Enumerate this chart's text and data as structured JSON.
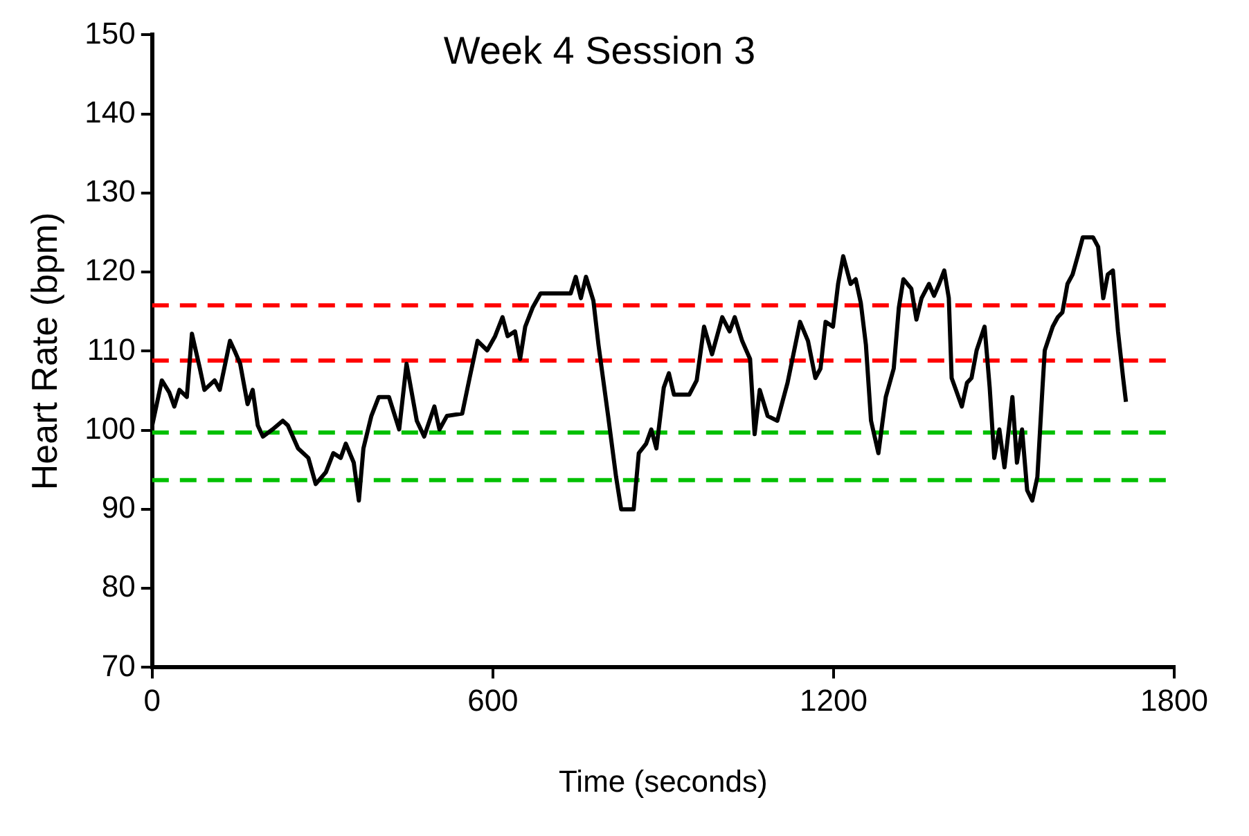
{
  "chart_data": {
    "type": "line",
    "title": "Week 4 Session 3",
    "xlabel": "Time (seconds)",
    "ylabel": "Heart Rate (bpm)",
    "xlim": [
      0,
      1800
    ],
    "xticks": [
      0,
      600,
      1200,
      1800
    ],
    "ylim": [
      70,
      150
    ],
    "yticks": [
      70,
      80,
      90,
      100,
      110,
      120,
      130,
      140,
      150
    ],
    "grid": false,
    "legend": false,
    "marker": "none",
    "line_style": "solid",
    "series": [
      {
        "color": "#000000",
        "x": [
          0,
          17,
          30,
          39,
          48,
          61,
          70,
          84,
          92,
          110,
          119,
          137,
          146,
          155,
          168,
          177,
          186,
          195,
          212,
          230,
          239,
          257,
          275,
          288,
          306,
          319,
          332,
          341,
          355,
          364,
          372,
          386,
          399,
          417,
          435,
          448,
          466,
          479,
          497,
          506,
          519,
          546,
          559,
          573,
          590,
          604,
          617,
          626,
          639,
          648,
          657,
          670,
          684,
          737,
          746,
          755,
          764,
          777,
          786,
          803,
          817,
          826,
          848,
          857,
          870,
          879,
          888,
          901,
          910,
          919,
          946,
          959,
          972,
          986,
          1004,
          1017,
          1026,
          1039,
          1053,
          1061,
          1070,
          1084,
          1101,
          1119,
          1141,
          1155,
          1168,
          1177,
          1186,
          1199,
          1208,
          1217,
          1230,
          1239,
          1248,
          1257,
          1266,
          1279,
          1292,
          1306,
          1315,
          1323,
          1337,
          1346,
          1355,
          1368,
          1377,
          1386,
          1395,
          1403,
          1408,
          1417,
          1426,
          1435,
          1443,
          1452,
          1466,
          1475,
          1483,
          1492,
          1501,
          1515,
          1523,
          1532,
          1541,
          1550,
          1559,
          1568,
          1572,
          1586,
          1595,
          1603,
          1612,
          1621,
          1630,
          1639,
          1657,
          1666,
          1675,
          1683,
          1692,
          1701,
          1710,
          1715
        ],
        "values": [
          100.6,
          106.3,
          104.8,
          103.0,
          105.1,
          104.2,
          112.2,
          107.8,
          105.1,
          106.3,
          105.1,
          111.3,
          109.9,
          108.4,
          103.3,
          105.1,
          100.6,
          99.2,
          100.1,
          101.2,
          100.6,
          97.7,
          96.5,
          93.2,
          94.7,
          97.1,
          96.5,
          98.3,
          95.9,
          91.1,
          97.7,
          101.8,
          104.2,
          104.2,
          100.1,
          108.4,
          101.2,
          99.2,
          103.0,
          100.1,
          101.8,
          102.1,
          106.6,
          111.3,
          110.1,
          111.9,
          114.3,
          111.9,
          112.5,
          109.0,
          113.1,
          115.5,
          117.3,
          117.3,
          119.4,
          116.7,
          119.4,
          116.4,
          110.8,
          101.8,
          94.1,
          90.0,
          90.0,
          97.1,
          98.3,
          100.1,
          97.7,
          105.4,
          107.2,
          104.5,
          104.5,
          106.3,
          113.1,
          109.6,
          114.3,
          112.5,
          114.3,
          111.3,
          109.0,
          99.5,
          105.1,
          101.8,
          101.2,
          106.0,
          113.7,
          111.3,
          106.6,
          107.8,
          113.7,
          113.1,
          118.5,
          122.0,
          118.5,
          119.1,
          116.1,
          110.8,
          101.2,
          97.1,
          104.2,
          107.8,
          115.5,
          119.1,
          117.9,
          114.0,
          116.7,
          118.5,
          117.0,
          118.5,
          120.2,
          116.7,
          106.6,
          104.8,
          103.0,
          106.0,
          106.6,
          110.1,
          113.1,
          105.4,
          96.5,
          100.1,
          95.3,
          104.2,
          95.9,
          100.1,
          92.4,
          91.1,
          94.1,
          105.4,
          110.1,
          113.1,
          114.3,
          114.9,
          118.5,
          119.7,
          122.0,
          124.4,
          124.4,
          123.2,
          116.7,
          119.7,
          120.2,
          112.5,
          106.6,
          103.6
        ]
      }
    ],
    "ref_lines": [
      {
        "axis": "y",
        "value": 115.8,
        "color": "#ff0000",
        "line_style": "dashed"
      },
      {
        "axis": "y",
        "value": 108.8,
        "color": "#ff0000",
        "line_style": "dashed"
      },
      {
        "axis": "y",
        "value": 99.7,
        "color": "#00c000",
        "line_style": "dashed"
      },
      {
        "axis": "y",
        "value": 93.7,
        "color": "#00c000",
        "line_style": "dashed"
      }
    ]
  }
}
